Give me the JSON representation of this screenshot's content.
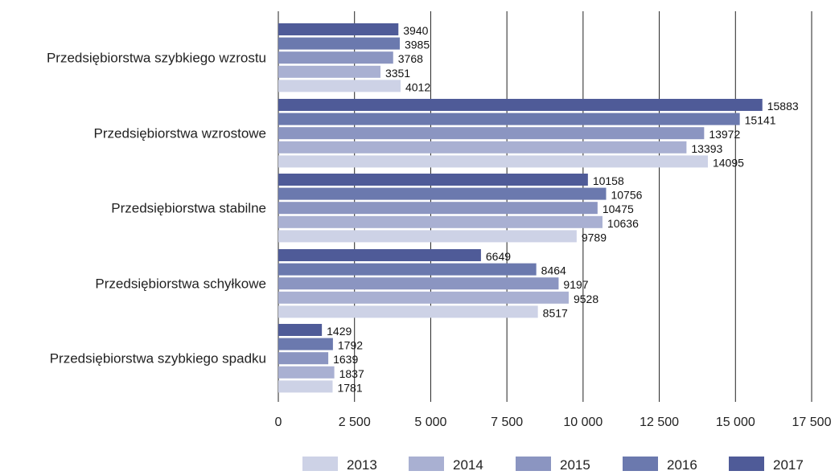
{
  "chart_data": {
    "type": "bar",
    "orientation": "horizontal",
    "categories": [
      "Przedsiębiorstwa szybkiego wzrostu",
      "Przedsiębiorstwa wzrostowe",
      "Przedsiębiorstwa stabilne",
      "Przedsiębiorstwa schyłkowe",
      "Przedsiębiorstwa szybkiego spadku"
    ],
    "series": [
      {
        "name": "2017",
        "color": "#4f5b98",
        "values": [
          3940,
          15883,
          10158,
          6649,
          1429
        ],
        "labels": [
          "3940",
          "15883",
          "10158",
          "6649",
          "1429"
        ]
      },
      {
        "name": "2016",
        "color": "#6b79ae",
        "values": [
          3985,
          15141,
          10756,
          8464,
          1792
        ],
        "labels": [
          "3985",
          "15141",
          "10756",
          "8464",
          "1792"
        ]
      },
      {
        "name": "2015",
        "color": "#8b95c1",
        "values": [
          3768,
          13972,
          10475,
          9197,
          1639
        ],
        "labels": [
          "3768",
          "13972",
          "10475",
          "9197",
          "1639"
        ]
      },
      {
        "name": "2014",
        "color": "#a9b0d2",
        "values": [
          3351,
          13393,
          10636,
          9528,
          1837
        ],
        "labels": [
          "3351",
          "13393",
          "10636",
          "9528",
          "1837"
        ]
      },
      {
        "name": "2013",
        "color": "#cdd2e6",
        "values": [
          4012,
          14095,
          9789,
          8517,
          1781
        ],
        "labels": [
          "4012",
          "14095",
          "9789",
          "8517",
          "1781"
        ]
      }
    ],
    "legend_order": [
      "2013",
      "2014",
      "2015",
      "2016",
      "2017"
    ],
    "x_ticks": [
      0,
      2500,
      5000,
      7500,
      10000,
      12500,
      15000,
      17500
    ],
    "x_tick_labels": [
      "0",
      "2 500",
      "5 000",
      "7 500",
      "10 000",
      "12 500",
      "15 000",
      "17 500"
    ],
    "xlim": [
      0,
      17500
    ],
    "grid": "vertical",
    "legend_position": "bottom",
    "title": "",
    "xlabel": "",
    "ylabel": ""
  }
}
